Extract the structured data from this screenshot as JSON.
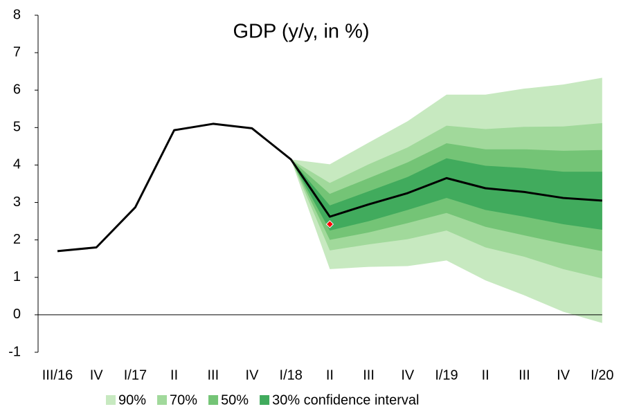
{
  "chart_data": {
    "type": "fan",
    "title": "GDP (y/y, in %)",
    "categories": [
      "III/16",
      "IV",
      "I/17",
      "II",
      "III",
      "IV",
      "I/18",
      "II",
      "III",
      "IV",
      "I/19",
      "II",
      "III",
      "IV",
      "I/20"
    ],
    "ylim": [
      -1,
      8
    ],
    "yticks": [
      -1,
      0,
      1,
      2,
      3,
      4,
      5,
      6,
      7,
      8
    ],
    "bands": [
      {
        "name": "90%",
        "color": "#c7e9c0",
        "upper": [
          null,
          null,
          null,
          null,
          null,
          null,
          4.15,
          4.02,
          4.6,
          5.17,
          5.88,
          5.88,
          6.04,
          6.15,
          6.33
        ],
        "lower": [
          null,
          null,
          null,
          null,
          null,
          null,
          4.15,
          1.22,
          1.28,
          1.3,
          1.45,
          0.92,
          0.52,
          0.08,
          -0.22
        ]
      },
      {
        "name": "70%",
        "color": "#a1d99b",
        "upper": [
          null,
          null,
          null,
          null,
          null,
          null,
          4.15,
          3.52,
          4.02,
          4.47,
          5.05,
          4.96,
          5.02,
          5.03,
          5.12
        ],
        "lower": [
          null,
          null,
          null,
          null,
          null,
          null,
          4.15,
          1.72,
          1.88,
          2.02,
          2.25,
          1.8,
          1.55,
          1.22,
          0.97
        ]
      },
      {
        "name": "50%",
        "color": "#74c476",
        "upper": [
          null,
          null,
          null,
          null,
          null,
          null,
          4.15,
          3.23,
          3.65,
          4.07,
          4.58,
          4.42,
          4.42,
          4.38,
          4.4
        ],
        "lower": [
          null,
          null,
          null,
          null,
          null,
          null,
          4.15,
          2.0,
          2.2,
          2.45,
          2.72,
          2.35,
          2.12,
          1.9,
          1.7
        ]
      },
      {
        "name": "30% confidence interval",
        "color": "#41ab5d",
        "upper": [
          null,
          null,
          null,
          null,
          null,
          null,
          4.15,
          2.92,
          3.3,
          3.68,
          4.18,
          3.98,
          3.92,
          3.82,
          3.82
        ],
        "lower": [
          null,
          null,
          null,
          null,
          null,
          null,
          4.15,
          2.25,
          2.5,
          2.8,
          3.12,
          2.8,
          2.62,
          2.42,
          2.27
        ]
      }
    ],
    "line": {
      "color": "#000000",
      "values": [
        1.7,
        1.8,
        2.87,
        4.93,
        5.1,
        4.98,
        4.15,
        2.62,
        2.95,
        3.25,
        3.65,
        3.38,
        3.28,
        3.12,
        3.05
      ]
    },
    "markers": {
      "color": "#ff0000",
      "values": [
        null,
        null,
        null,
        null,
        null,
        null,
        null,
        2.42,
        null,
        null,
        null,
        null,
        null,
        null,
        null
      ]
    }
  }
}
